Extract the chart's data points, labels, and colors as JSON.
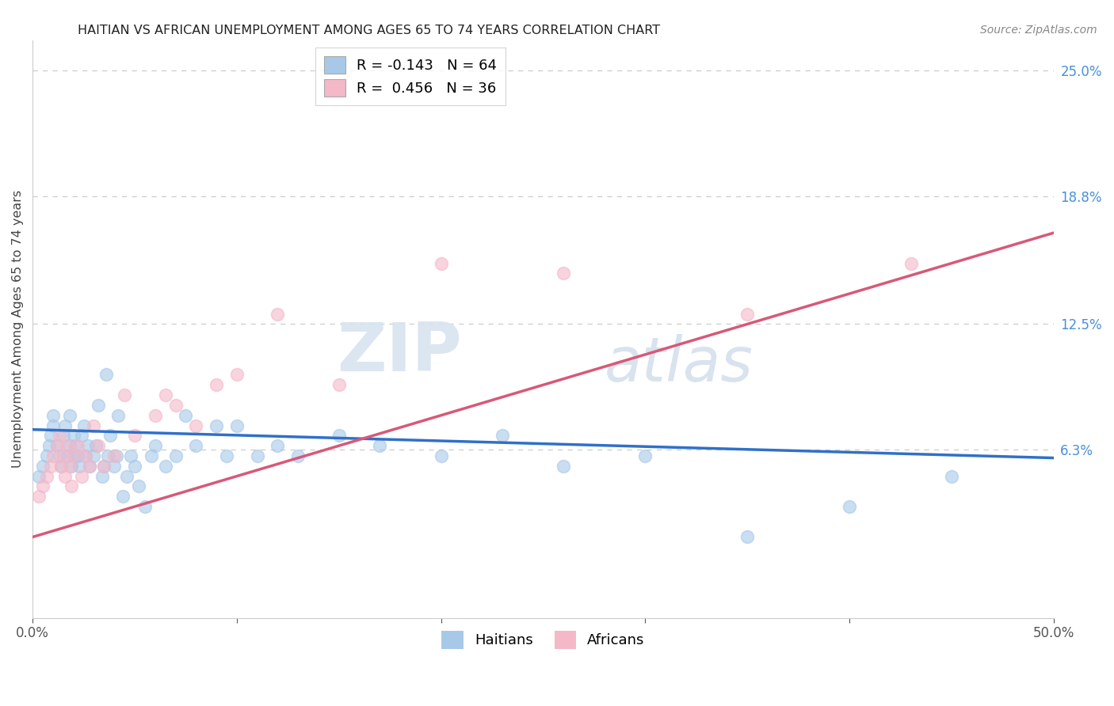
{
  "title": "HAITIAN VS AFRICAN UNEMPLOYMENT AMONG AGES 65 TO 74 YEARS CORRELATION CHART",
  "source": "Source: ZipAtlas.com",
  "ylabel": "Unemployment Among Ages 65 to 74 years",
  "xlim": [
    0,
    0.5
  ],
  "ylim": [
    -0.02,
    0.265
  ],
  "ytick_right_vals": [
    0.063,
    0.125,
    0.188,
    0.25
  ],
  "ytick_right_labels": [
    "6.3%",
    "12.5%",
    "18.8%",
    "25.0%"
  ],
  "haitian_R": -0.143,
  "haitian_N": 64,
  "african_R": 0.456,
  "african_N": 36,
  "haitian_color": "#a8c8e8",
  "african_color": "#f4b8c8",
  "haitian_line_color": "#3070c8",
  "african_line_color": "#d85878",
  "legend_label_haitian": "Haitians",
  "legend_label_african": "Africans",
  "watermark_zip": "ZIP",
  "watermark_atlas": "atlas",
  "background_color": "#ffffff",
  "grid_color": "#cccccc",
  "haitian_x": [
    0.003,
    0.005,
    0.007,
    0.008,
    0.009,
    0.01,
    0.01,
    0.012,
    0.013,
    0.014,
    0.015,
    0.016,
    0.017,
    0.018,
    0.018,
    0.019,
    0.02,
    0.02,
    0.021,
    0.022,
    0.023,
    0.024,
    0.025,
    0.026,
    0.027,
    0.028,
    0.03,
    0.031,
    0.032,
    0.034,
    0.035,
    0.036,
    0.037,
    0.038,
    0.04,
    0.041,
    0.042,
    0.044,
    0.046,
    0.048,
    0.05,
    0.052,
    0.055,
    0.058,
    0.06,
    0.065,
    0.07,
    0.075,
    0.08,
    0.09,
    0.095,
    0.1,
    0.11,
    0.12,
    0.13,
    0.15,
    0.17,
    0.2,
    0.23,
    0.26,
    0.3,
    0.35,
    0.4,
    0.45
  ],
  "haitian_y": [
    0.05,
    0.055,
    0.06,
    0.065,
    0.07,
    0.075,
    0.08,
    0.065,
    0.06,
    0.055,
    0.07,
    0.075,
    0.06,
    0.065,
    0.08,
    0.055,
    0.06,
    0.07,
    0.065,
    0.06,
    0.055,
    0.07,
    0.075,
    0.06,
    0.065,
    0.055,
    0.06,
    0.065,
    0.085,
    0.05,
    0.055,
    0.1,
    0.06,
    0.07,
    0.055,
    0.06,
    0.08,
    0.04,
    0.05,
    0.06,
    0.055,
    0.045,
    0.035,
    0.06,
    0.065,
    0.055,
    0.06,
    0.08,
    0.065,
    0.075,
    0.06,
    0.075,
    0.06,
    0.065,
    0.06,
    0.07,
    0.065,
    0.06,
    0.07,
    0.055,
    0.06,
    0.02,
    0.035,
    0.05
  ],
  "african_x": [
    0.003,
    0.005,
    0.007,
    0.009,
    0.01,
    0.012,
    0.013,
    0.014,
    0.015,
    0.016,
    0.017,
    0.018,
    0.019,
    0.02,
    0.022,
    0.024,
    0.026,
    0.028,
    0.03,
    0.032,
    0.035,
    0.04,
    0.045,
    0.05,
    0.06,
    0.065,
    0.07,
    0.08,
    0.09,
    0.1,
    0.12,
    0.15,
    0.2,
    0.26,
    0.35,
    0.43
  ],
  "african_y": [
    0.04,
    0.045,
    0.05,
    0.055,
    0.06,
    0.065,
    0.07,
    0.055,
    0.06,
    0.05,
    0.065,
    0.055,
    0.045,
    0.06,
    0.065,
    0.05,
    0.06,
    0.055,
    0.075,
    0.065,
    0.055,
    0.06,
    0.09,
    0.07,
    0.08,
    0.09,
    0.085,
    0.075,
    0.095,
    0.1,
    0.13,
    0.095,
    0.155,
    0.15,
    0.13,
    0.155
  ]
}
